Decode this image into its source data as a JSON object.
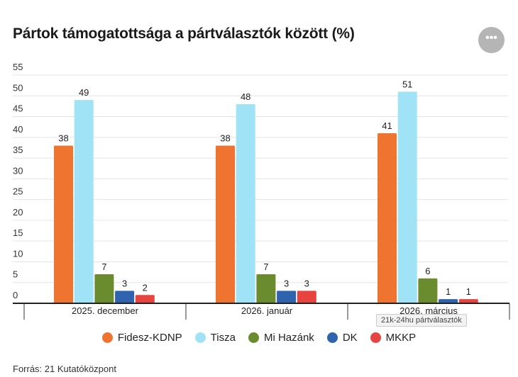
{
  "chart_data": {
    "type": "bar",
    "title": "Pártok támogatottsága a pártválasztók között (%)",
    "categories": [
      "2025. december",
      "2026. január",
      "2026. március"
    ],
    "series": [
      {
        "name": "Fidesz-KDNP",
        "color": "#ee7430",
        "values": [
          38,
          38,
          41
        ]
      },
      {
        "name": "Tisza",
        "color": "#a0e3f7",
        "values": [
          49,
          48,
          51
        ]
      },
      {
        "name": "Mi Hazánk",
        "color": "#6b8c2e",
        "values": [
          7,
          7,
          6
        ]
      },
      {
        "name": "DK",
        "color": "#2f63ad",
        "values": [
          3,
          3,
          1
        ]
      },
      {
        "name": "MKKP",
        "color": "#e8443f",
        "values": [
          2,
          3,
          1
        ]
      }
    ],
    "yticks": [
      "0",
      "5",
      "10",
      "15",
      "20",
      "25",
      "30",
      "35",
      "40",
      "45",
      "50",
      "55"
    ],
    "ylim": [
      0,
      55
    ],
    "xlabel": "",
    "ylabel": "",
    "grid": true,
    "legend": "bottom"
  },
  "menu_label": "•••",
  "tooltip": "21k-24hu pártválasztók",
  "source": "Forrás: 21 Kutatóközpont"
}
